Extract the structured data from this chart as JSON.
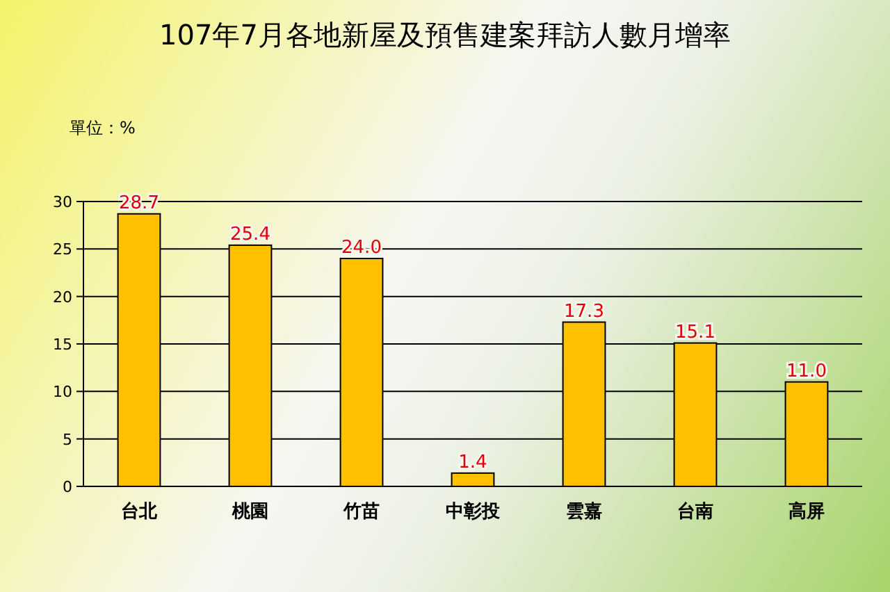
{
  "chart_data": {
    "type": "bar",
    "title": "107年7月各地新屋及預售建案拜訪人數月增率",
    "categories": [
      "台北",
      "桃園",
      "竹苗",
      "中彰投",
      "雲嘉",
      "台南",
      "高屏"
    ],
    "values": [
      28.7,
      25.4,
      24.0,
      1.4,
      17.3,
      15.1,
      11.0
    ],
    "color": "#ffc000",
    "value_labels": [
      "28.7",
      "25.4",
      "24.0",
      "1.4",
      "17.3",
      "15.1",
      "11.0"
    ],
    "ylim": [
      0,
      30
    ],
    "yticks": [
      0,
      5,
      10,
      15,
      20,
      25,
      30
    ],
    "grid": "y",
    "annotations": [
      "單位：%"
    ]
  }
}
